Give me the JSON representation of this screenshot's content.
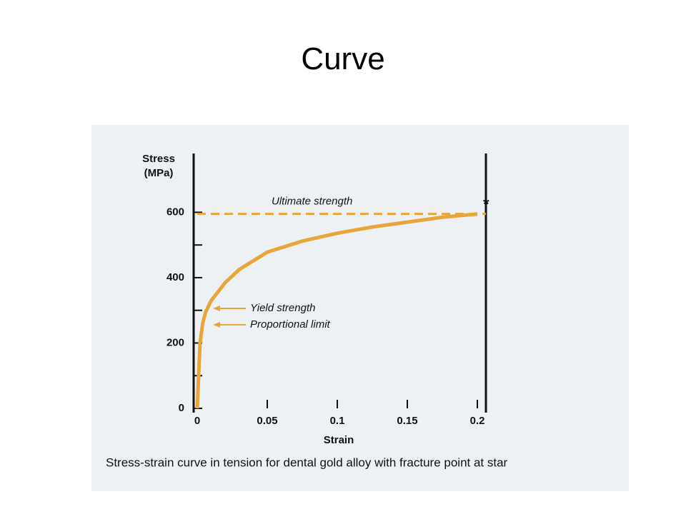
{
  "slide_title": "Curve",
  "chart_data": {
    "type": "line",
    "caption": "Stress-strain curve in tension for dental gold alloy with fracture point at star",
    "ylabel": [
      "Stress",
      "(MPa)"
    ],
    "xlabel": "Strain",
    "x": [
      0,
      0.002,
      0.004,
      0.006,
      0.01,
      0.02,
      0.03,
      0.05,
      0.075,
      0.1,
      0.125,
      0.15,
      0.175,
      0.2
    ],
    "series": [
      {
        "name": "Stress-strain curve",
        "color": "#e8a53a",
        "values": [
          0,
          200,
          262,
          295,
          330,
          385,
          425,
          478,
          512,
          536,
          555,
          570,
          585,
          595
        ]
      }
    ],
    "xlim": [
      0,
      0.2
    ],
    "ylim": [
      0,
      780
    ],
    "xticks": [
      0,
      0.05,
      0.1,
      0.15,
      0.2
    ],
    "yticks": [
      0,
      200,
      400,
      600
    ],
    "yminor_ticks": [
      100,
      300,
      500
    ],
    "annotations": [
      {
        "label": "Ultimate strength",
        "value": 595,
        "style": "dashed"
      },
      {
        "label": "Yield strength",
        "value": 306,
        "style": "arrow"
      },
      {
        "label": "Proportional limit",
        "value": 256,
        "style": "arrow"
      }
    ],
    "fracture_marker": "*"
  }
}
